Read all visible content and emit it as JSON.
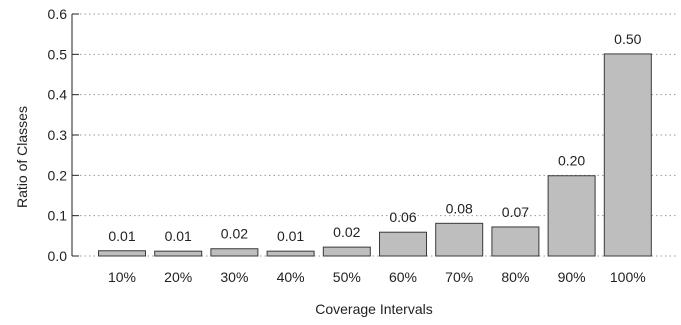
{
  "chart_data": {
    "type": "bar",
    "categories": [
      "10%",
      "20%",
      "30%",
      "40%",
      "50%",
      "60%",
      "70%",
      "80%",
      "90%",
      "100%"
    ],
    "values": [
      0.013,
      0.012,
      0.018,
      0.012,
      0.022,
      0.059,
      0.081,
      0.072,
      0.199,
      0.501
    ],
    "data_labels": [
      "0.01",
      "0.01",
      "0.02",
      "0.01",
      "0.02",
      "0.06",
      "0.08",
      "0.07",
      "0.20",
      "0.50"
    ],
    "xlabel": "Coverage Intervals",
    "ylabel": "Ratio of Classes",
    "ylim": [
      0,
      0.6
    ],
    "yticks": [
      0.0,
      0.1,
      0.2,
      0.3,
      0.4,
      0.5,
      0.6
    ],
    "ytick_labels": [
      "0.0",
      "0.1",
      "0.2",
      "0.3",
      "0.4",
      "0.5",
      "0.6"
    ],
    "grid": "horizontal dotted",
    "bar_color": "#bebebe",
    "bar_edge_color": "#3a3a3a"
  }
}
